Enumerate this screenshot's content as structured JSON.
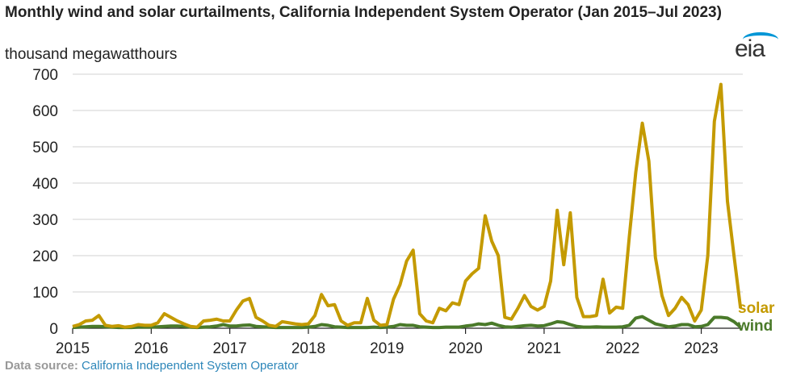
{
  "chart_data": {
    "type": "line",
    "title": "Monthly wind and solar curtailments, California Independent System Operator (Jan 2015–Jul 2023)",
    "ylabel": "thousand megawatthours",
    "xlabel": "",
    "ylim": [
      0,
      700
    ],
    "yticks": [
      0,
      100,
      200,
      300,
      400,
      500,
      600,
      700
    ],
    "xticks": [
      "2015",
      "2016",
      "2017",
      "2018",
      "2019",
      "2020",
      "2021",
      "2022",
      "2023"
    ],
    "x_start": "2015-01",
    "x_end": "2023-07",
    "grid": true,
    "series": [
      {
        "name": "solar",
        "color": "#c49a00",
        "values": [
          5,
          10,
          20,
          22,
          35,
          8,
          5,
          7,
          3,
          5,
          10,
          8,
          8,
          15,
          40,
          30,
          20,
          12,
          5,
          3,
          20,
          22,
          25,
          20,
          20,
          50,
          75,
          82,
          30,
          20,
          8,
          5,
          18,
          15,
          12,
          10,
          12,
          35,
          93,
          62,
          65,
          20,
          8,
          15,
          15,
          82,
          22,
          8,
          10,
          80,
          120,
          185,
          215,
          40,
          20,
          15,
          55,
          48,
          70,
          65,
          130,
          150,
          165,
          310,
          240,
          200,
          30,
          25,
          55,
          90,
          60,
          50,
          60,
          130,
          325,
          175,
          318,
          85,
          32,
          32,
          35,
          135,
          42,
          58,
          55,
          250,
          430,
          565,
          460,
          195,
          90,
          35,
          55,
          85,
          65,
          20,
          50,
          200,
          570,
          672,
          350,
          200,
          55
        ]
      },
      {
        "name": "wind",
        "color": "#4a7a2a",
        "values": [
          2,
          3,
          4,
          5,
          5,
          4,
          3,
          2,
          2,
          2,
          3,
          3,
          3,
          4,
          5,
          6,
          6,
          5,
          3,
          2,
          3,
          4,
          6,
          10,
          6,
          6,
          8,
          9,
          5,
          4,
          3,
          2,
          2,
          2,
          2,
          2,
          3,
          5,
          10,
          8,
          4,
          3,
          2,
          2,
          2,
          2,
          3,
          2,
          3,
          5,
          10,
          8,
          8,
          4,
          3,
          2,
          2,
          3,
          3,
          3,
          6,
          8,
          12,
          10,
          14,
          8,
          4,
          3,
          5,
          7,
          8,
          6,
          7,
          12,
          18,
          16,
          10,
          5,
          3,
          3,
          4,
          3,
          3,
          3,
          4,
          8,
          28,
          32,
          22,
          12,
          8,
          4,
          6,
          10,
          10,
          4,
          5,
          10,
          30,
          30,
          28,
          18,
          3
        ]
      }
    ]
  },
  "header": {
    "title": "Monthly wind and solar curtailments, California Independent System Operator (Jan 2015–Jul 2023)",
    "units": "thousand megawatthours",
    "logo": "eia"
  },
  "footer": {
    "label": "Data source:",
    "source": "California Independent System Operator"
  }
}
